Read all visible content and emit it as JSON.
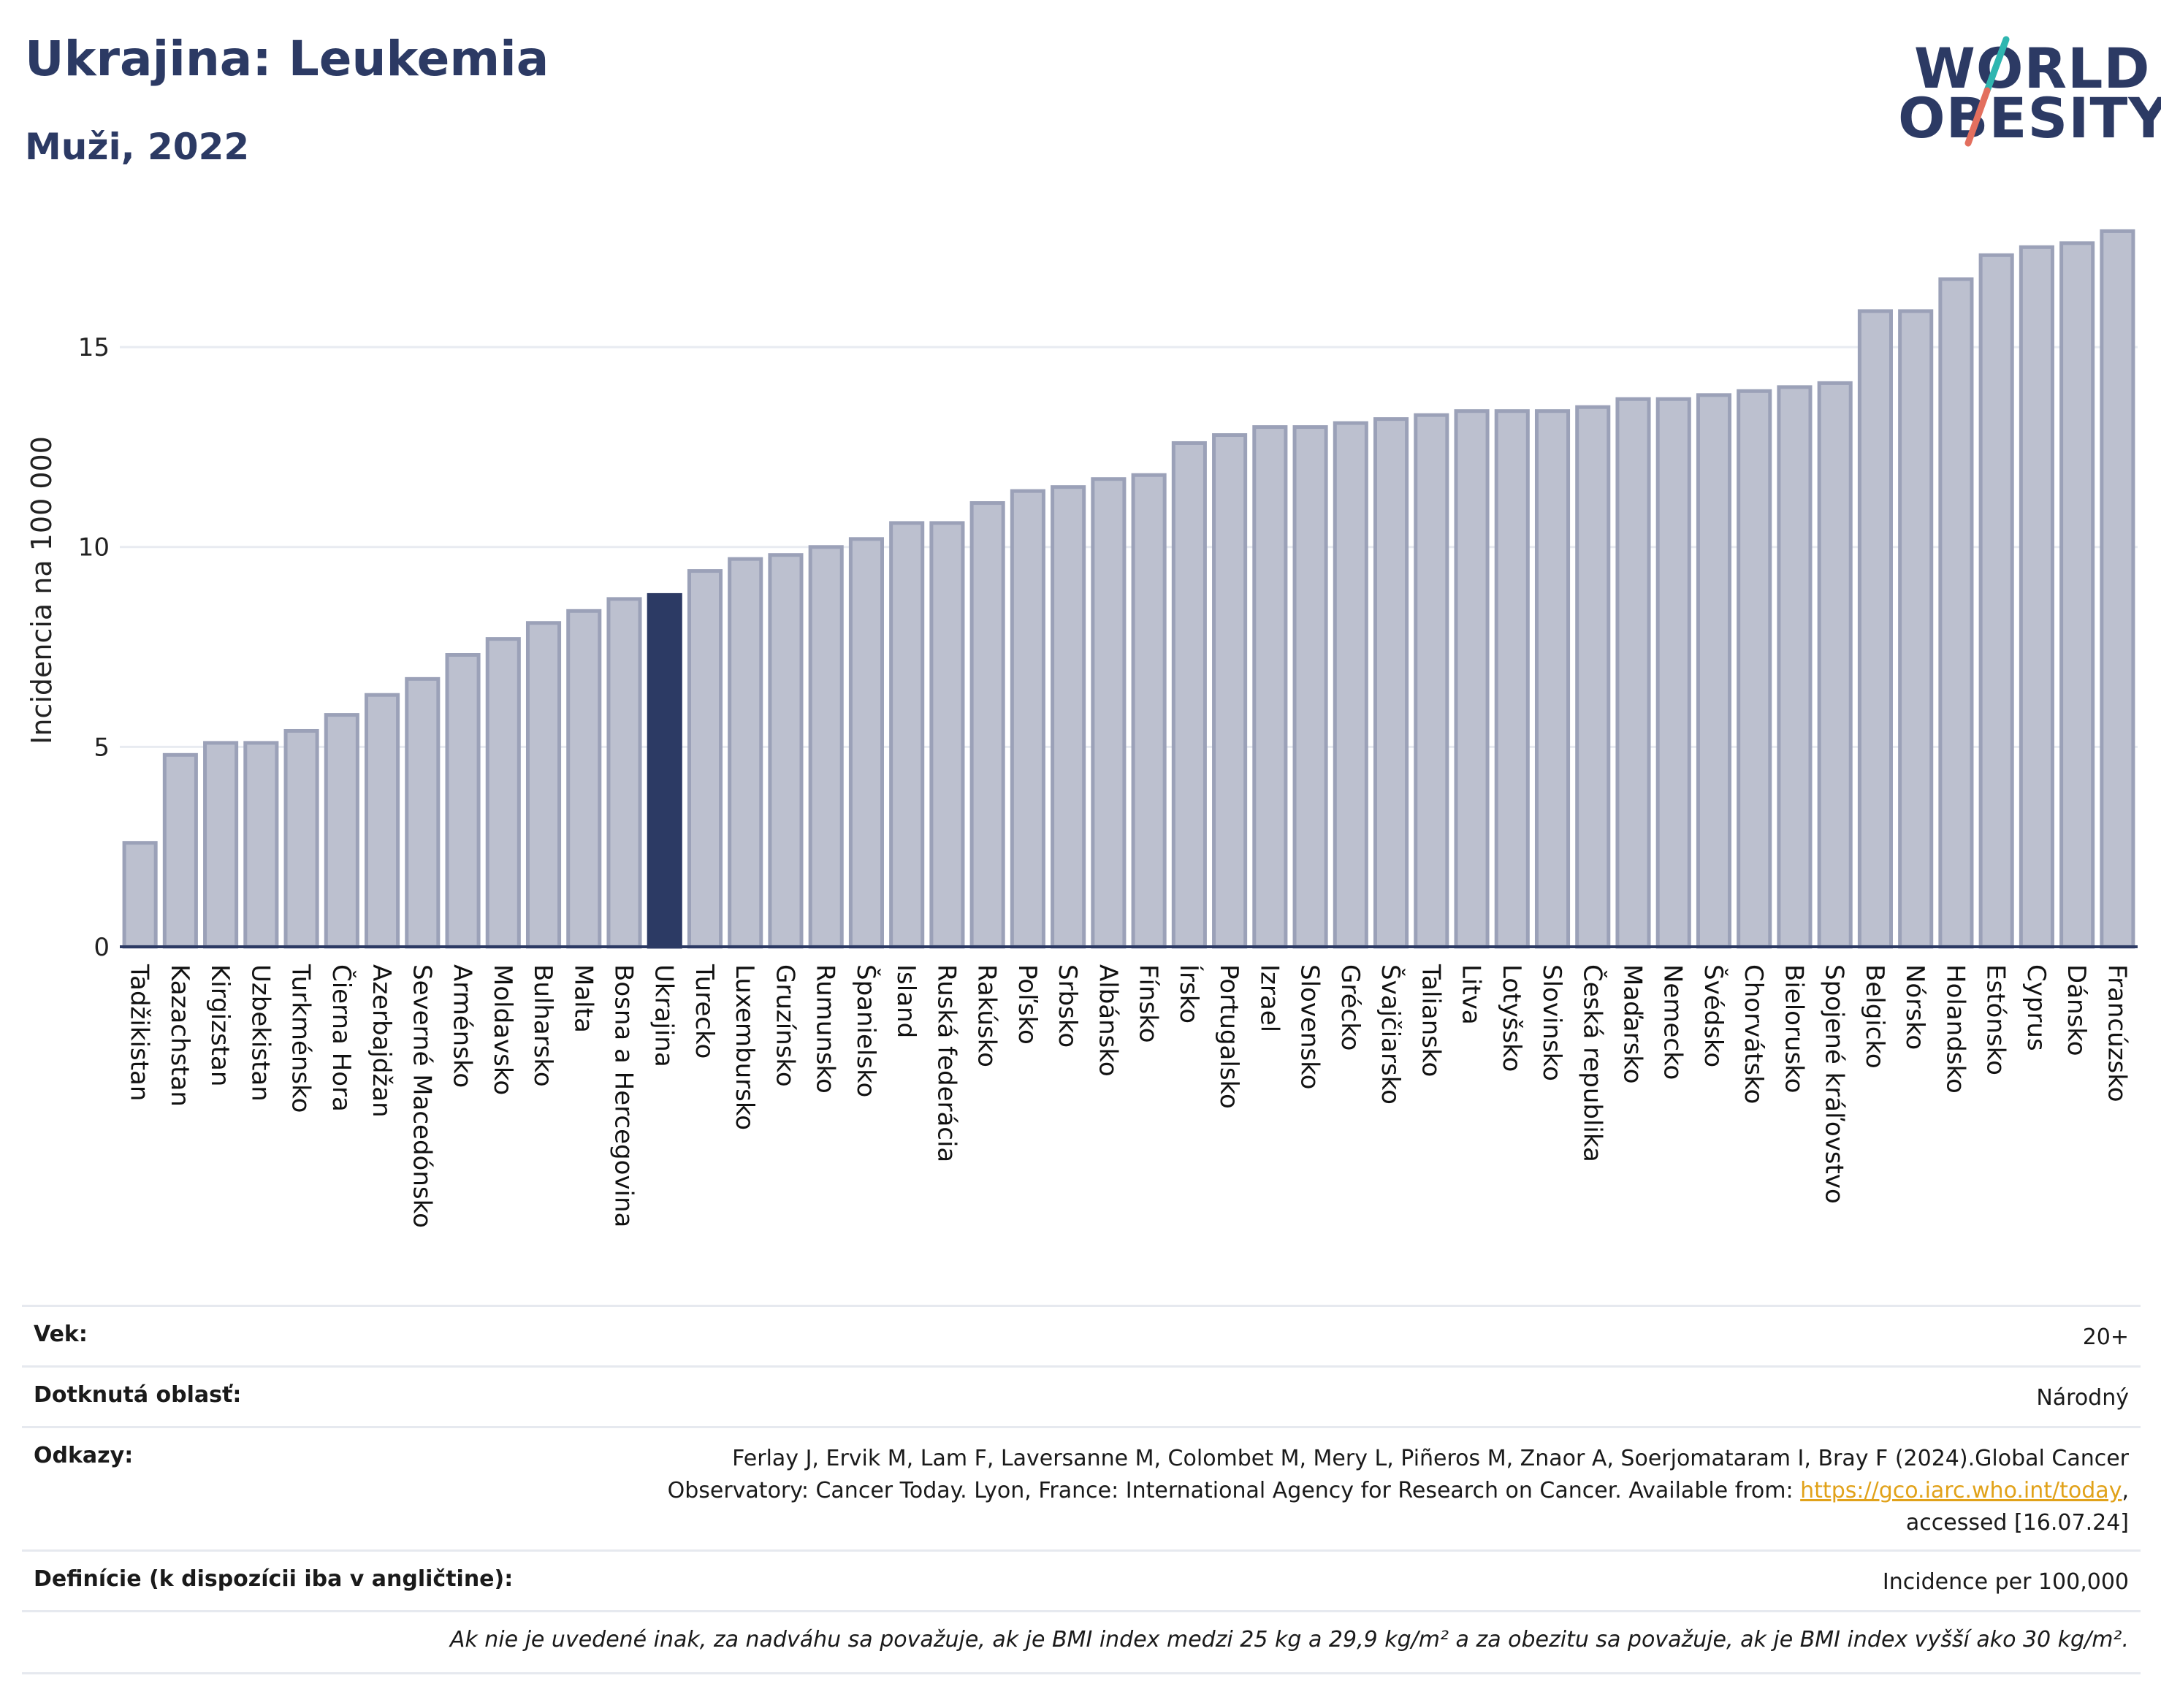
{
  "header": {
    "title": "Ukrajina: Leukemia",
    "subtitle": "Muži, 2022",
    "logo_line1": "WORLD",
    "logo_line2": "OBESITY"
  },
  "colors": {
    "brand_navy": "#2c3a64",
    "bar_default": "#bcc0cf",
    "bar_outline": "#9ba1b8",
    "bar_highlight": "#2c3a64",
    "logo_slash_teal": "#2fb6b0",
    "logo_slash_coral": "#e36f5e",
    "link": "#e1a21a"
  },
  "chart_data": {
    "type": "bar",
    "ylabel": "Incidencia na 100 000",
    "xlabel": "",
    "ylim": [
      0,
      18.2
    ],
    "yticks": [
      0,
      5,
      10,
      15
    ],
    "grid": true,
    "highlight": "Ukrajina",
    "categories": [
      "Tadžikistan",
      "Kazachstan",
      "Kirgizstan",
      "Uzbekistan",
      "Turkménsko",
      "Čierna Hora",
      "Azerbajdžan",
      "Severné Macedónsko",
      "Arménsko",
      "Moldavsko",
      "Bulharsko",
      "Malta",
      "Bosna a Hercegovina",
      "Ukrajina",
      "Turecko",
      "Luxembursko",
      "Gruzínsko",
      "Rumunsko",
      "Španielsko",
      "Island",
      "Ruská federácia",
      "Rakúsko",
      "Poľsko",
      "Srbsko",
      "Albánsko",
      "Fínsko",
      "Írsko",
      "Portugalsko",
      "Izrael",
      "Slovensko",
      "Grécko",
      "Švajčiarsko",
      "Taliansko",
      "Litva",
      "Lotyšsko",
      "Slovinsko",
      "Česká republika",
      "Maďarsko",
      "Nemecko",
      "Švédsko",
      "Chorvátsko",
      "Bielorusko",
      "Spojené kráľovstvo",
      "Belgicko",
      "Nórsko",
      "Holandsko",
      "Estónsko",
      "Cyprus",
      "Dánsko",
      "Francúzsko"
    ],
    "values": [
      2.6,
      4.8,
      5.1,
      5.1,
      5.4,
      5.8,
      6.3,
      6.7,
      7.3,
      7.7,
      8.1,
      8.4,
      8.7,
      8.8,
      9.4,
      9.7,
      9.8,
      10.0,
      10.2,
      10.6,
      10.6,
      11.1,
      11.4,
      11.5,
      11.7,
      11.8,
      12.6,
      12.8,
      13.0,
      13.0,
      13.1,
      13.2,
      13.3,
      13.4,
      13.4,
      13.4,
      13.5,
      13.7,
      13.7,
      13.8,
      13.9,
      14.0,
      14.1,
      15.9,
      15.9,
      16.7,
      17.3,
      17.5,
      17.6,
      17.9
    ]
  },
  "meta": {
    "age_label": "Vek:",
    "age_value": "20+",
    "area_label": "Dotknutá oblasť:",
    "area_value": "Národný",
    "refs_label": "Odkazy:",
    "refs_line1": "Ferlay J, Ervik M, Lam F, Laversanne M, Colombet M, Mery L, Piñeros M, Znaor A, Soerjomataram I, Bray F (2024).Global Cancer",
    "refs_line2": "Observatory: Cancer Today. Lyon, France: International Agency for Research on Cancer. Available from: ",
    "refs_link": "https://gco.iarc.who.int/today",
    "refs_line2_end": ",",
    "refs_line3": "accessed [16.07.24]",
    "def_label": "Definície (k dispozícii iba v angličtine):",
    "def_value": "Incidence per 100,000",
    "note": "Ak nie je uvedené inak, za nadváhu sa považuje, ak je BMI index medzi 25 kg a 29,9 kg/m² a za obezitu sa považuje, ak je BMI index vyšší ako 30 kg/m²."
  }
}
